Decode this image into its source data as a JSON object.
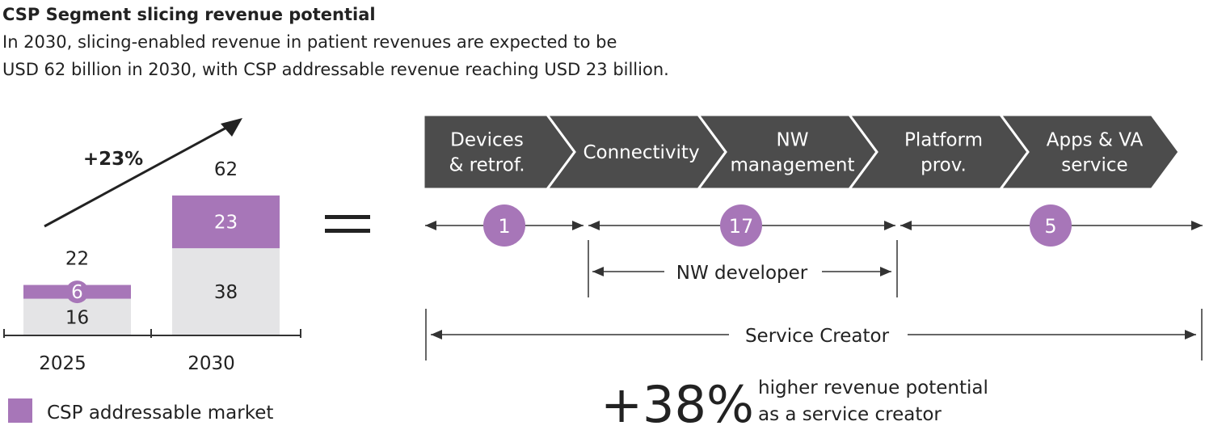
{
  "title": "CSP Segment slicing revenue potential",
  "subtitle_line1": "In 2030, slicing-enabled revenue in patient  revenues are expected to be",
  "subtitle_line2": "USD 62 billion in 2030, with CSP addressable revenue reaching USD 23 billion.",
  "colors": {
    "addressable": "#a776b8",
    "rest": "#e4e4e6",
    "chevron": "#4c4c4c",
    "text": "#222222"
  },
  "chart_data": {
    "type": "bar",
    "stacked": true,
    "categories": [
      "2025",
      "2030"
    ],
    "series": [
      {
        "name": "",
        "values": [
          16,
          38
        ]
      },
      {
        "name": "CSP addressable market",
        "values": [
          6,
          23
        ]
      }
    ],
    "totals": [
      22,
      62
    ],
    "growth_label": "+23%",
    "legend_label": "CSP addressable market",
    "legend_position": "bottom-left"
  },
  "equals_sign": "=",
  "value_chain": [
    {
      "label_lines": [
        "Devices",
        "& retrof."
      ]
    },
    {
      "label_lines": [
        "Connectivity"
      ]
    },
    {
      "label_lines": [
        "NW",
        "management"
      ]
    },
    {
      "label_lines": [
        "Platform",
        "prov."
      ]
    },
    {
      "label_lines": [
        "Apps & VA",
        "service"
      ]
    }
  ],
  "segment_values": [
    "1",
    "17",
    "5"
  ],
  "nw_developer_label": "NW developer",
  "service_creator_label": "Service Creator",
  "highlight": {
    "value": "+38%",
    "line1": "higher revenue potential",
    "line2": "as a service creator"
  }
}
